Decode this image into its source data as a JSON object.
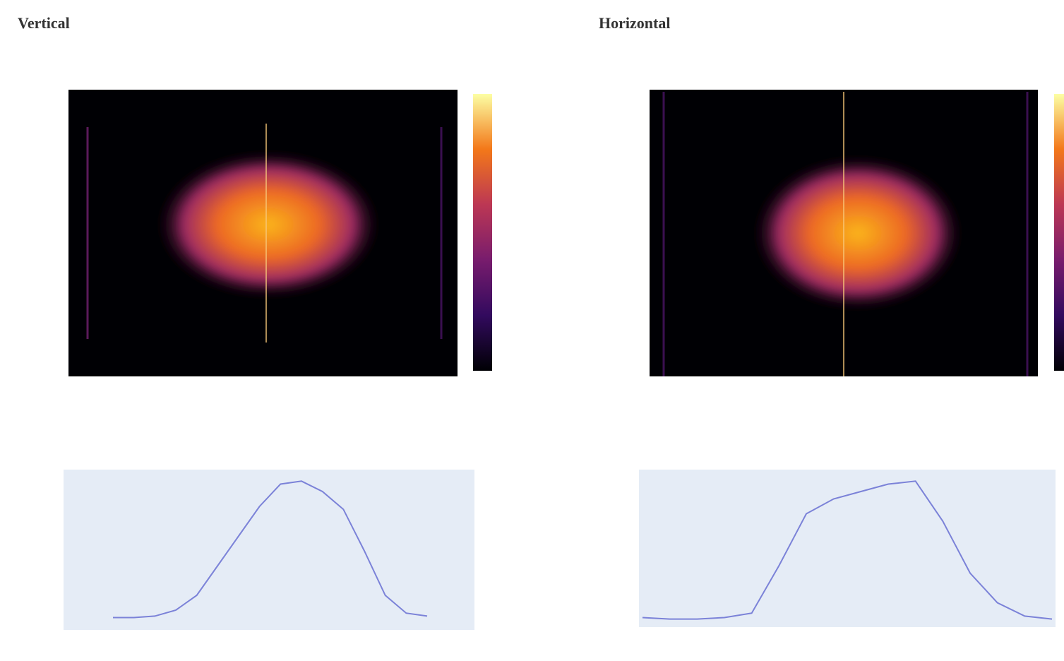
{
  "panels": [
    {
      "title": "Vertical",
      "profile": {
        "ylim": [
          0,
          1
        ],
        "values": [
          0.05,
          0.05,
          0.06,
          0.1,
          0.2,
          0.4,
          0.6,
          0.8,
          0.95,
          0.97,
          0.9,
          0.78,
          0.5,
          0.2,
          0.08,
          0.06
        ]
      }
    },
    {
      "title": "Horizontal",
      "profile": {
        "ylim": [
          0,
          1
        ],
        "values": [
          0.05,
          0.04,
          0.04,
          0.05,
          0.08,
          0.4,
          0.75,
          0.85,
          0.9,
          0.95,
          0.97,
          0.7,
          0.35,
          0.15,
          0.06,
          0.04
        ]
      }
    }
  ]
}
